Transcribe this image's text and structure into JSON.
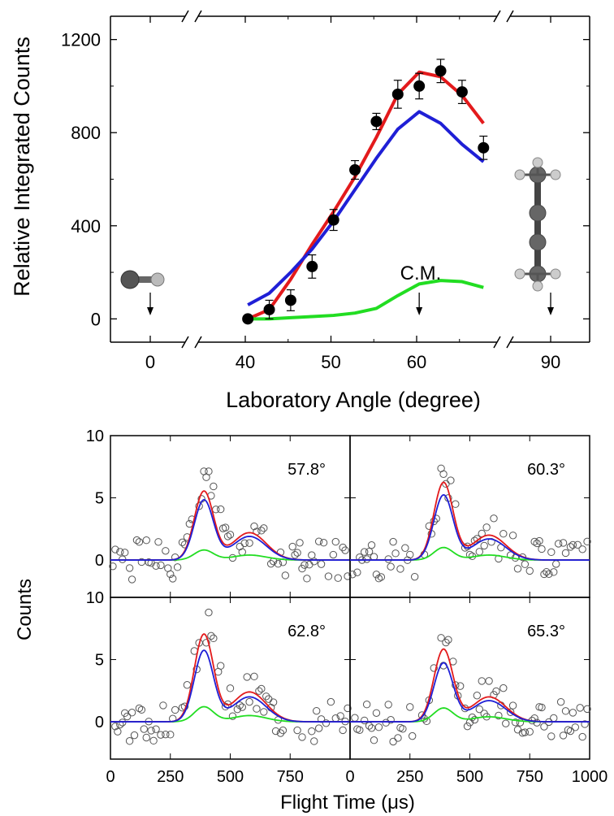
{
  "chart_data": [
    {
      "type": "scatter",
      "ylabel": "Relative Integrated Counts",
      "xlabel": "Laboratory Angle (degree)",
      "ylim": [
        -100,
        1300
      ],
      "x_ticks": [
        "0",
        "40",
        "50",
        "60",
        "90"
      ],
      "y_ticks": [
        "0",
        "400",
        "800",
        "1200"
      ],
      "broken_axis": true,
      "annotation": "C.M.",
      "cm_angle": 60.3,
      "markers": [
        {
          "angle": 0,
          "molecule": "diatomic"
        },
        {
          "angle": 60.3,
          "molecule": "C.M."
        },
        {
          "angle": 90,
          "molecule": "chain"
        }
      ],
      "series": [
        {
          "kind": "points",
          "color": "#000000",
          "x": [
            40.3,
            42.8,
            45.3,
            47.8,
            50.3,
            52.8,
            55.3,
            57.8,
            60.3,
            62.8,
            65.3,
            67.8
          ],
          "y": [
            0,
            40,
            80,
            225,
            425,
            640,
            848,
            965,
            1000,
            1065,
            975,
            735
          ],
          "err": [
            0,
            40,
            45,
            50,
            45,
            40,
            35,
            60,
            55,
            50,
            50,
            50
          ]
        },
        {
          "kind": "line",
          "color": "#e31a1c",
          "x": [
            40.3,
            42.8,
            45.3,
            47.8,
            50.3,
            52.8,
            55.3,
            57.8,
            60.3,
            62.8,
            65.3,
            67.8
          ],
          "y": [
            0,
            40,
            170,
            320,
            460,
            610,
            780,
            965,
            1060,
            1040,
            960,
            840
          ]
        },
        {
          "kind": "line",
          "color": "#1f1fd6",
          "x": [
            40.3,
            42.8,
            45.3,
            47.8,
            50.3,
            52.8,
            55.3,
            57.8,
            60.3,
            62.8,
            65.3,
            67.8
          ],
          "y": [
            60,
            110,
            200,
            300,
            420,
            555,
            690,
            815,
            890,
            840,
            750,
            675
          ]
        },
        {
          "kind": "line",
          "color": "#22dd22",
          "x": [
            40.3,
            42.8,
            45.3,
            47.8,
            50.3,
            52.8,
            55.3,
            57.8,
            60.3,
            62.8,
            65.3,
            67.8
          ],
          "y": [
            0,
            0,
            5,
            10,
            15,
            25,
            45,
            100,
            150,
            165,
            160,
            135
          ]
        }
      ]
    },
    {
      "type": "line",
      "ylabel": "Counts",
      "xlabel": "Flight Time (μs)",
      "x_ticks": [
        "0",
        "250",
        "500",
        "750",
        "1000"
      ],
      "y_ticks": [
        "0",
        "5",
        "10"
      ],
      "xlim": [
        0,
        1000
      ],
      "ylim": [
        -3,
        10
      ],
      "panels": [
        {
          "label": "57.8°",
          "red_amp": [
            5.5,
            2.2
          ],
          "blue_amp": [
            4.8,
            1.9
          ],
          "green_amp": [
            0.8,
            0.4
          ],
          "scatter_seed": 1
        },
        {
          "label": "60.3°",
          "red_amp": [
            6.2,
            2.0
          ],
          "blue_amp": [
            5.2,
            1.7
          ],
          "green_amp": [
            1.0,
            0.4
          ],
          "scatter_seed": 2
        },
        {
          "label": "62.8°",
          "red_amp": [
            7.0,
            2.4
          ],
          "blue_amp": [
            5.7,
            2.0
          ],
          "green_amp": [
            1.2,
            0.5
          ],
          "scatter_seed": 3
        },
        {
          "label": "65.3°",
          "red_amp": [
            5.8,
            2.0
          ],
          "blue_amp": [
            4.7,
            1.7
          ],
          "green_amp": [
            1.1,
            0.4
          ],
          "scatter_seed": 4
        }
      ],
      "colors": {
        "red": "#e31a1c",
        "blue": "#1f1fd6",
        "green": "#22dd22",
        "points": "#555555"
      }
    }
  ]
}
